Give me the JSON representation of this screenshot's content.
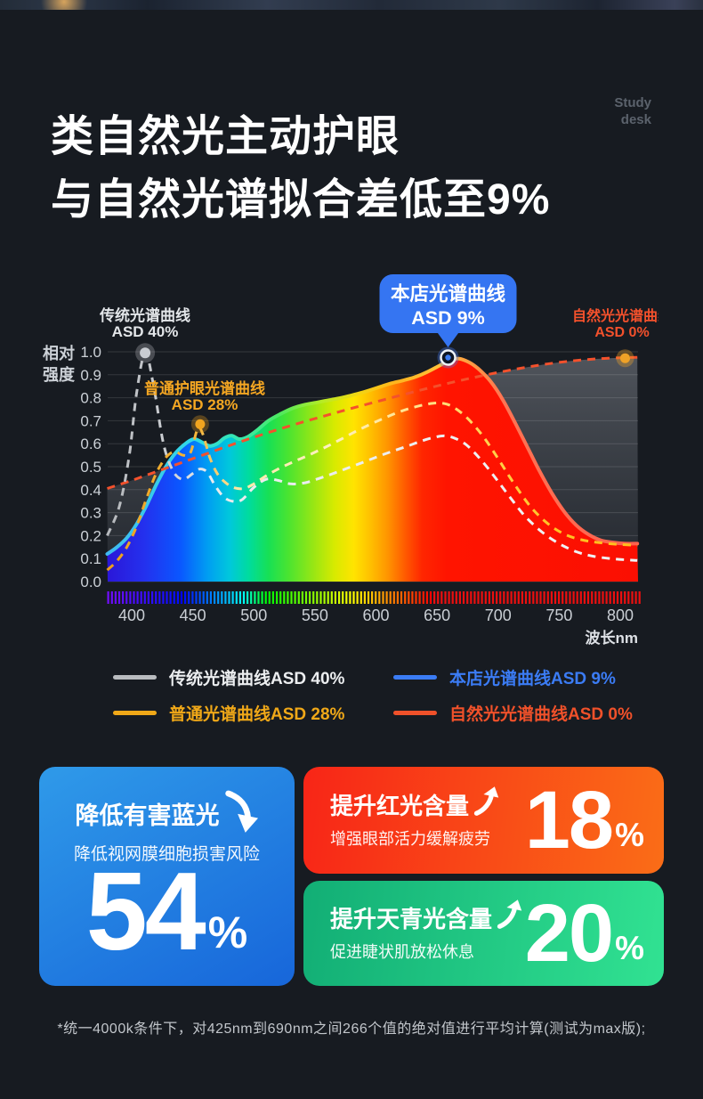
{
  "header": {
    "title_line1": "类自然光主动护眼",
    "title_line2": "与自然光谱拟合差低至9%",
    "brand_line1": "Study",
    "brand_line2": "desk"
  },
  "chart_data": {
    "type": "area",
    "xlabel": "波长nm",
    "ylabel_lines": [
      "相对",
      "强度"
    ],
    "xlim": [
      380,
      815
    ],
    "ylim": [
      0,
      1.0
    ],
    "grid": true,
    "x_ticks": [
      400,
      450,
      500,
      550,
      600,
      650,
      700,
      750,
      800
    ],
    "y_ticks": [
      1.0,
      0.9,
      0.8,
      0.7,
      0.6,
      0.5,
      0.4,
      0.3,
      0.2,
      0.1,
      0.0
    ],
    "legend_position": "bottom",
    "series": [
      {
        "key": "store",
        "name": "本店光谱曲线ASD 9%",
        "style": "rainbow-area",
        "color": "#3b7cf5",
        "x": [
          380,
          388,
          396,
          404,
          412,
          420,
          428,
          436,
          444,
          451,
          458,
          464,
          470,
          476,
          482,
          488,
          495,
          503,
          512,
          522,
          532,
          542,
          552,
          562,
          572,
          582,
          592,
          602,
          612,
          622,
          632,
          642,
          652,
          660,
          668,
          676,
          684,
          694,
          704,
          714,
          724,
          734,
          744,
          754,
          764,
          774,
          784,
          794,
          804,
          814
        ],
        "y": [
          0.12,
          0.15,
          0.19,
          0.25,
          0.33,
          0.42,
          0.5,
          0.56,
          0.6,
          0.62,
          0.605,
          0.59,
          0.6,
          0.625,
          0.635,
          0.62,
          0.63,
          0.66,
          0.7,
          0.73,
          0.755,
          0.77,
          0.78,
          0.79,
          0.8,
          0.813,
          0.828,
          0.845,
          0.862,
          0.875,
          0.89,
          0.912,
          0.94,
          0.962,
          0.97,
          0.955,
          0.925,
          0.87,
          0.79,
          0.69,
          0.585,
          0.48,
          0.385,
          0.305,
          0.245,
          0.205,
          0.18,
          0.17,
          0.165,
          0.165
        ]
      },
      {
        "key": "natural",
        "name": "自然光光谱曲线ASD 0%",
        "style": "dashed",
        "color": "#f4512c",
        "x": [
          380,
          400,
          420,
          440,
          460,
          480,
          500,
          520,
          540,
          560,
          580,
          600,
          620,
          640,
          660,
          680,
          700,
          720,
          740,
          760,
          780,
          800,
          814
        ],
        "y": [
          0.405,
          0.44,
          0.478,
          0.516,
          0.554,
          0.592,
          0.628,
          0.662,
          0.694,
          0.724,
          0.754,
          0.782,
          0.81,
          0.838,
          0.864,
          0.888,
          0.91,
          0.93,
          0.947,
          0.96,
          0.969,
          0.974,
          0.976
        ]
      },
      {
        "key": "traditional",
        "name": "传统光谱曲线ASD 40%",
        "style": "dashed",
        "color": "#c9ccd1",
        "x": [
          380,
          390,
          398,
          404,
          411,
          418,
          426,
          434,
          442,
          450,
          456,
          462,
          468,
          475,
          482,
          490,
          500,
          510,
          520,
          530,
          542,
          554,
          566,
          578,
          590,
          602,
          614,
          626,
          638,
          648,
          656,
          664,
          674,
          686,
          698,
          710,
          722,
          736,
          750,
          764,
          778,
          796,
          814
        ],
        "y": [
          0.2,
          0.33,
          0.55,
          0.82,
          0.995,
          0.85,
          0.6,
          0.48,
          0.445,
          0.47,
          0.49,
          0.475,
          0.42,
          0.37,
          0.35,
          0.355,
          0.41,
          0.445,
          0.44,
          0.425,
          0.43,
          0.45,
          0.472,
          0.496,
          0.52,
          0.545,
          0.568,
          0.59,
          0.613,
          0.628,
          0.634,
          0.625,
          0.595,
          0.53,
          0.45,
          0.365,
          0.285,
          0.215,
          0.165,
          0.13,
          0.11,
          0.098,
          0.092
        ]
      },
      {
        "key": "common",
        "name": "普通光谱曲线ASD 28%",
        "style": "dashed",
        "color": "#f1a41f",
        "x": [
          380,
          388,
          396,
          404,
          412,
          420,
          428,
          435,
          442,
          448,
          454,
          458,
          464,
          470,
          477,
          484,
          492,
          500,
          510,
          520,
          532,
          544,
          556,
          568,
          580,
          592,
          604,
          616,
          628,
          640,
          650,
          658,
          666,
          676,
          688,
          700,
          712,
          726,
          740,
          754,
          768,
          782,
          798,
          814
        ],
        "y": [
          0.05,
          0.09,
          0.15,
          0.24,
          0.36,
          0.47,
          0.54,
          0.565,
          0.55,
          0.56,
          0.665,
          0.645,
          0.54,
          0.47,
          0.43,
          0.408,
          0.405,
          0.425,
          0.46,
          0.49,
          0.52,
          0.548,
          0.578,
          0.61,
          0.644,
          0.676,
          0.705,
          0.732,
          0.754,
          0.77,
          0.777,
          0.772,
          0.75,
          0.705,
          0.63,
          0.535,
          0.435,
          0.33,
          0.255,
          0.207,
          0.182,
          0.17,
          0.162,
          0.158
        ]
      }
    ],
    "annotations": [
      {
        "key": "traditional",
        "lines": [
          "传统光谱曲线",
          "ASD 40%"
        ],
        "color": "#e3e6e9",
        "x": 411,
        "v": 0.995
      },
      {
        "key": "common",
        "lines": [
          "普通护眼光谱曲线",
          "ASD 28%"
        ],
        "color": "#f5a722",
        "x": 456,
        "v": 0.685
      },
      {
        "key": "store",
        "lines": [
          "本店光谱曲线",
          "ASD 9%"
        ],
        "color": "#ffffff",
        "bubble_color": "#3575f2",
        "x": 659,
        "v": 0.975
      },
      {
        "key": "natural",
        "lines": [
          "自然光光谱曲线",
          "ASD 0%"
        ],
        "color": "#f4512c",
        "x": 804,
        "v": 0.972
      }
    ]
  },
  "legend": {
    "items": [
      {
        "label": "传统光谱曲线ASD 40%",
        "color": "#b9bcbf",
        "text_color": "#eceef0"
      },
      {
        "label": "本店光谱曲线ASD 9%",
        "color": "#3b7cf5",
        "text_color": "#3b7cf5"
      },
      {
        "label": "普通光谱曲线ASD 28%",
        "color": "#f0a818",
        "text_color": "#f0a818"
      },
      {
        "label": "自然光光谱曲线ASD 0%",
        "color": "#f0512a",
        "text_color": "#f0512a"
      }
    ]
  },
  "cards": {
    "blue": {
      "title": "降低有害蓝光",
      "subtitle": "降低视网膜细胞损害风险",
      "value": "54",
      "unit": "%",
      "bg_from": "#2f9ae9",
      "bg_to": "#1766da",
      "direction": "down"
    },
    "red": {
      "title": "提升红光含量",
      "subtitle": "增强眼部活力缓解疲劳",
      "value": "18",
      "unit": "%",
      "bg_from": "#f82517",
      "bg_to": "#fa6d17",
      "direction": "up"
    },
    "green": {
      "title": "提升天青光含量",
      "subtitle": "促进睫状肌放松休息",
      "value": "20",
      "unit": "%",
      "bg_from": "#12ae75",
      "bg_to": "#31e292",
      "direction": "up"
    }
  },
  "footnote": {
    "text": "*统一4000k条件下，对425nm到690nm之间266个值的绝对值进行平均计算(测试为max版);"
  }
}
